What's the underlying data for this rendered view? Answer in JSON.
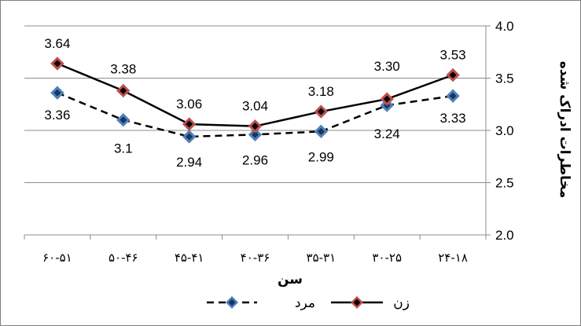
{
  "chart_data": {
    "type": "line",
    "categories": [
      "۶۰-۵۱",
      "۵۰-۴۶",
      "۴۵-۴۱",
      "۴۰-۳۶",
      "۳۵-۳۱",
      "۳۰-۲۵",
      "۲۴-۱۸"
    ],
    "series": [
      {
        "name": "زن",
        "values": [
          3.64,
          3.38,
          3.06,
          3.04,
          3.18,
          3.3,
          3.53
        ],
        "labels": [
          "3.64",
          "3.38",
          "3.06",
          "3.04",
          "3.18",
          "3.30",
          "3.53"
        ],
        "line_color": "#000000",
        "line_style": "solid",
        "marker_fill": "#c0504d",
        "marker_inner": "#000000"
      },
      {
        "name": "مرد",
        "values": [
          3.36,
          3.1,
          2.94,
          2.96,
          2.99,
          3.24,
          3.33
        ],
        "labels": [
          "3.36",
          "3.1",
          "2.94",
          "2.96",
          "2.99",
          "3.24",
          "3.33"
        ],
        "line_color": "#000000",
        "line_style": "dashed",
        "marker_fill": "#4f81bd",
        "marker_inner": "#17375e"
      }
    ],
    "ylim": [
      2.0,
      4.0
    ],
    "yticks": [
      "2.0",
      "2.5",
      "3.0",
      "3.5",
      "4.0"
    ],
    "xlabel": "سن",
    "ylabel": "مخاطرات ادراک شده",
    "y_axis_side": "right",
    "grid": true,
    "legend_position": "bottom",
    "colors": {
      "grid": "#8c8c8c",
      "axis": "#8c8c8c"
    }
  }
}
